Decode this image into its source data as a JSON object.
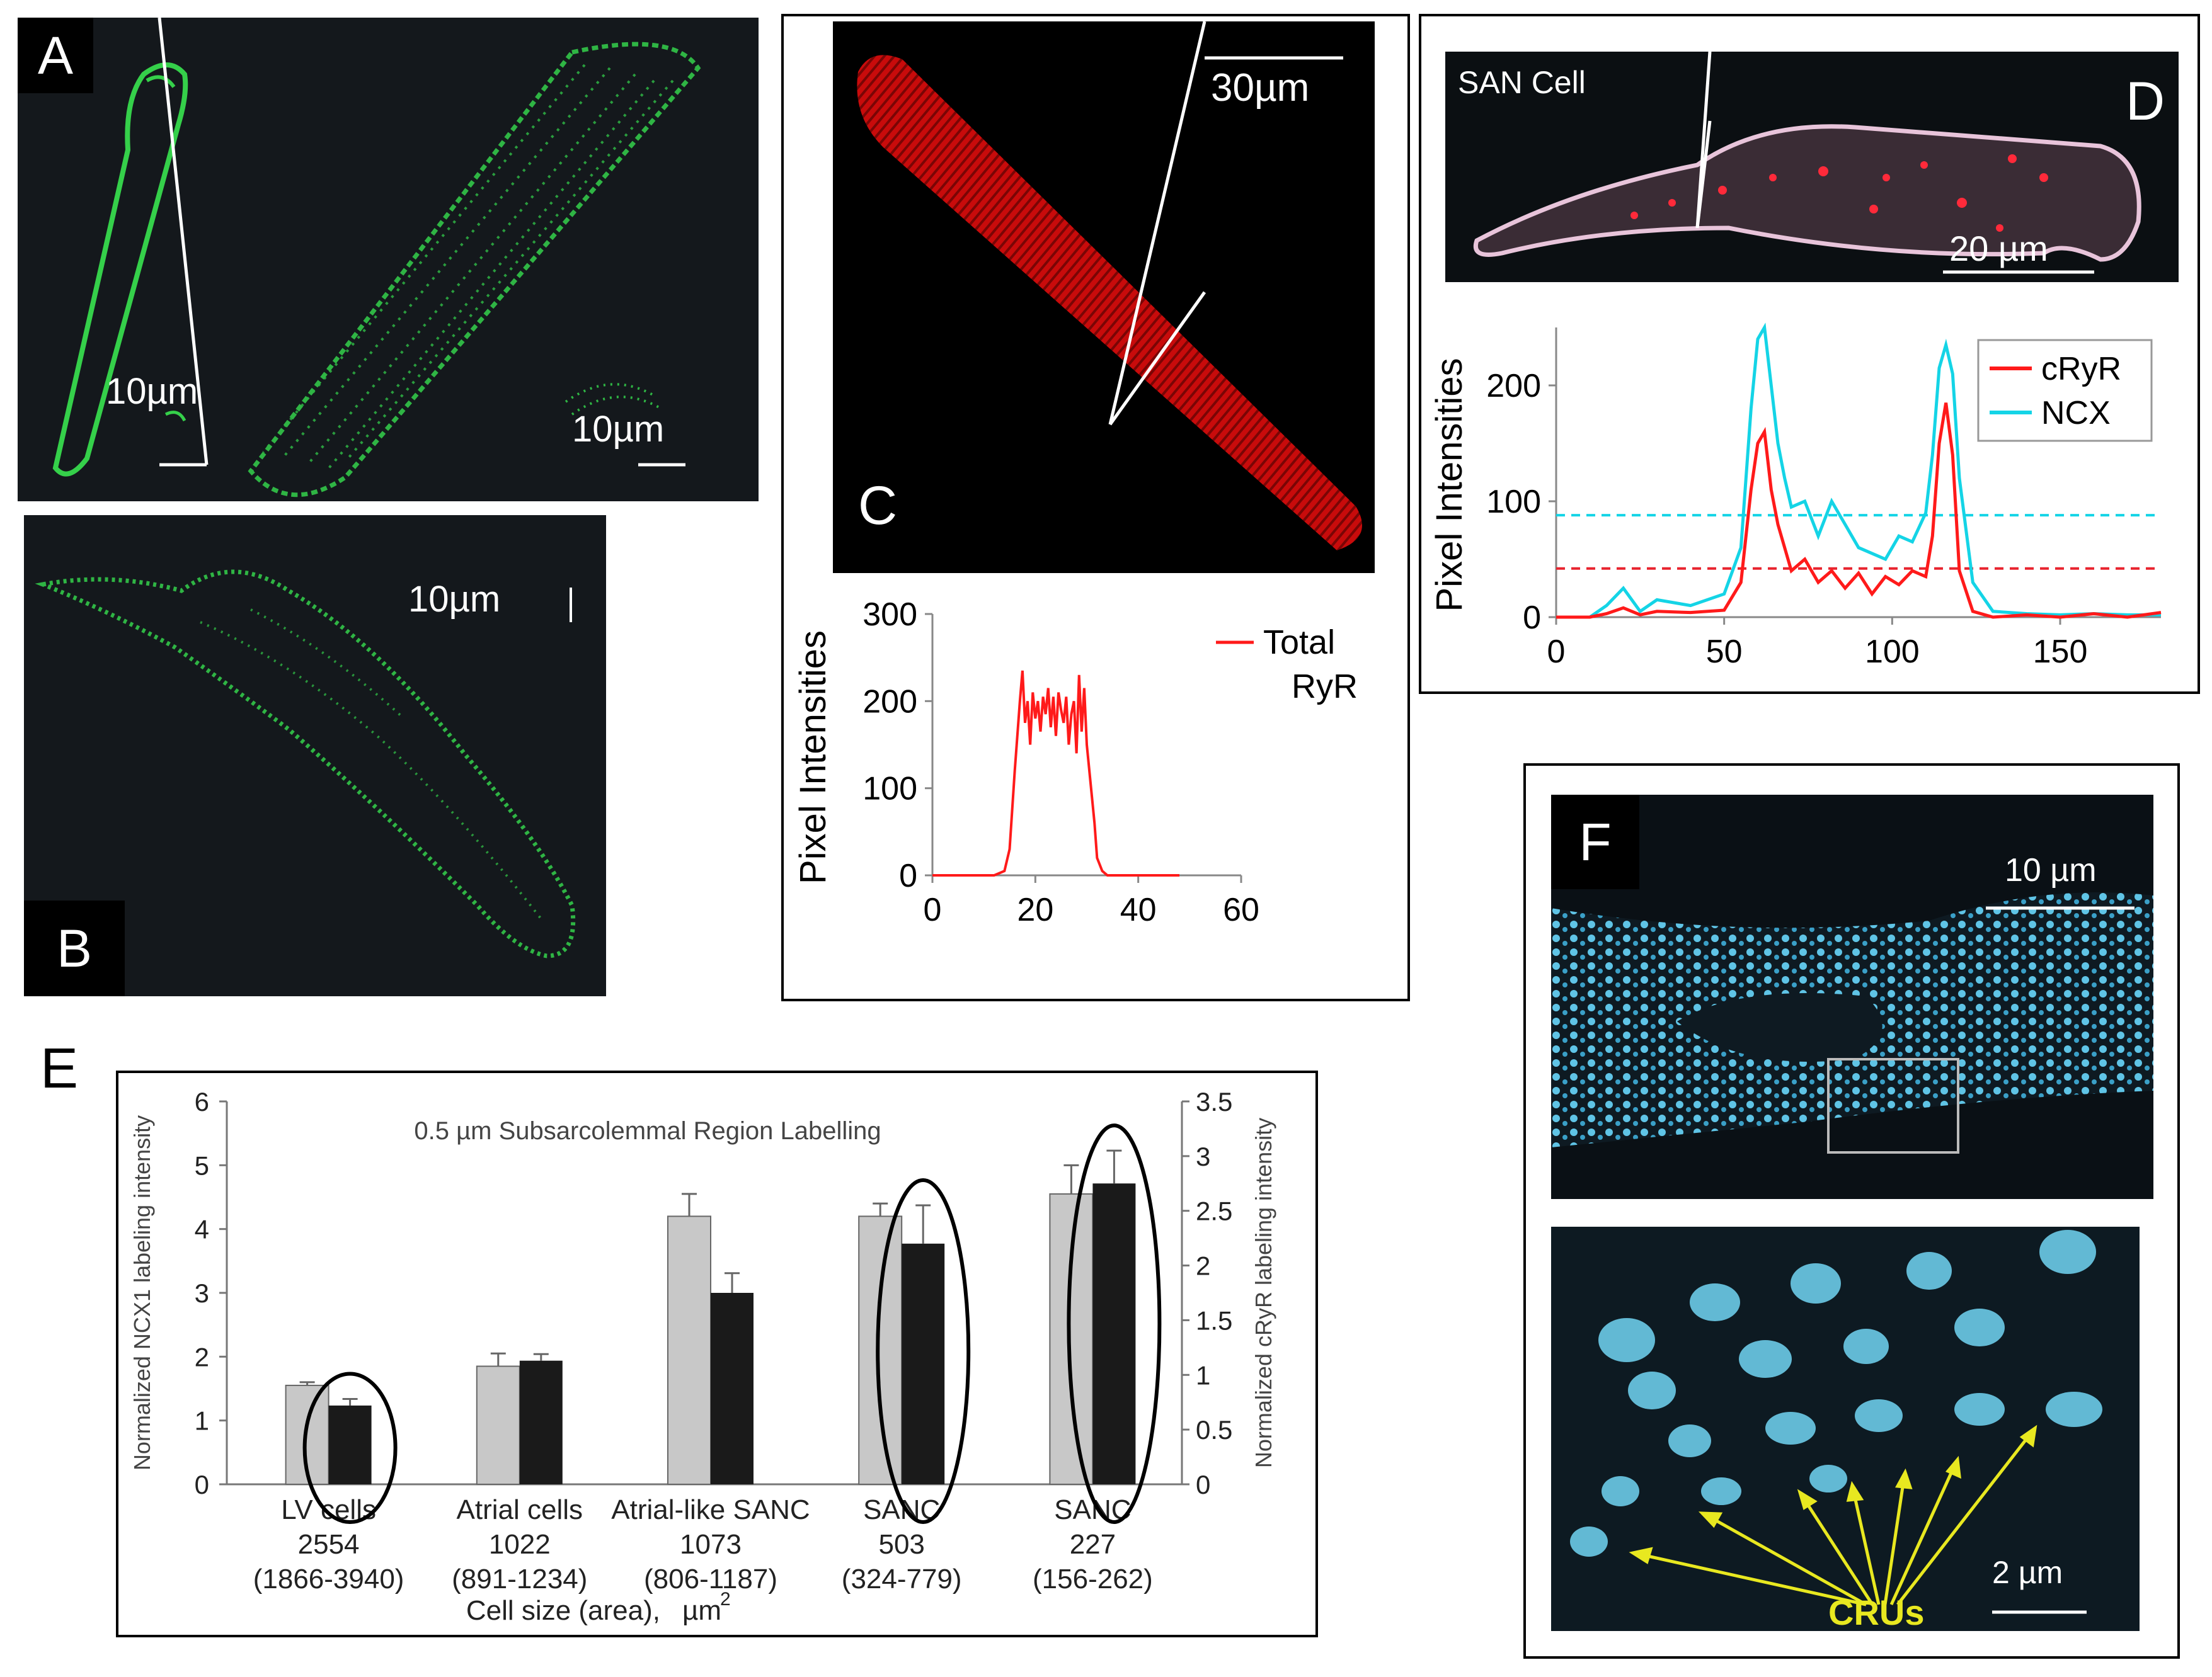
{
  "panels": {
    "A": {
      "label": "A",
      "scale1": "10µm",
      "scale2": "10µm"
    },
    "B": {
      "label": "B",
      "scale": "10µm"
    },
    "C": {
      "label": "C",
      "scale": "30µm",
      "chart_data": {
        "type": "line",
        "ylabel": "Pixel Intensities",
        "xlabel": "",
        "xlim": [
          0,
          60
        ],
        "ylim": [
          0,
          300
        ],
        "xticks": [
          "0",
          "20",
          "40",
          "60"
        ],
        "yticks": [
          "0",
          "100",
          "200",
          "300"
        ],
        "legend": [
          "Total",
          "RyR"
        ],
        "series": [
          {
            "name": "Total RyR",
            "color": "#ff1a1a",
            "x": [
              0,
              2,
              4,
              6,
              8,
              10,
              12,
              14,
              15,
              16,
              17,
              17.5,
              18,
              18.5,
              19,
              19.5,
              20,
              20.5,
              21,
              21.5,
              22,
              22.5,
              23,
              23.5,
              24,
              24.5,
              25,
              25.5,
              26,
              26.5,
              27,
              27.5,
              28,
              28.5,
              29,
              29.5,
              30,
              30.5,
              31,
              31.5,
              32,
              33,
              34,
              36,
              38,
              40,
              44,
              48
            ],
            "y": [
              0,
              0,
              0,
              0,
              0,
              0,
              0,
              5,
              30,
              120,
              200,
              235,
              175,
              200,
              150,
              210,
              180,
              200,
              165,
              205,
              185,
              215,
              170,
              205,
              160,
              210,
              190,
              175,
              205,
              150,
              185,
              200,
              140,
              230,
              165,
              215,
              150,
              120,
              90,
              60,
              20,
              5,
              0,
              0,
              0,
              0,
              0,
              0
            ]
          }
        ]
      }
    },
    "D": {
      "label": "D",
      "image_title": "SAN Cell",
      "scale": "20 µm",
      "chart_data": {
        "type": "line",
        "ylabel": "Pixel Intensities",
        "xlabel": "",
        "xlim": [
          0,
          180
        ],
        "ylim": [
          0,
          250
        ],
        "xticks": [
          "0",
          "50",
          "100",
          "150"
        ],
        "yticks": [
          "0",
          "100",
          "200"
        ],
        "thresholds": [
          {
            "name": "NCX",
            "value": 88,
            "color": "#14d4e6"
          },
          {
            "name": "cRyR",
            "value": 42,
            "color": "#e8232e"
          }
        ],
        "series": [
          {
            "name": "cRyR",
            "color": "#ff1a1a",
            "x": [
              0,
              10,
              15,
              20,
              25,
              30,
              40,
              50,
              55,
              58,
              60,
              62,
              64,
              66,
              68,
              70,
              74,
              78,
              82,
              86,
              90,
              94,
              98,
              102,
              106,
              110,
              112,
              114,
              116,
              118,
              120,
              124,
              130,
              140,
              150,
              160,
              170,
              180
            ],
            "y": [
              0,
              0,
              3,
              8,
              2,
              5,
              4,
              6,
              30,
              110,
              150,
              160,
              110,
              80,
              60,
              40,
              50,
              30,
              40,
              25,
              38,
              20,
              35,
              28,
              40,
              35,
              70,
              150,
              185,
              140,
              40,
              5,
              0,
              2,
              0,
              3,
              0,
              4
            ]
          },
          {
            "name": "NCX",
            "color": "#14d4e6",
            "x": [
              0,
              10,
              15,
              20,
              25,
              30,
              40,
              50,
              55,
              58,
              60,
              62,
              64,
              66,
              68,
              70,
              74,
              78,
              82,
              86,
              90,
              94,
              98,
              102,
              106,
              110,
              112,
              114,
              116,
              118,
              120,
              124,
              130,
              140,
              150,
              160,
              170,
              180
            ],
            "y": [
              0,
              0,
              10,
              25,
              5,
              15,
              10,
              20,
              60,
              180,
              240,
              250,
              200,
              150,
              120,
              95,
              100,
              70,
              100,
              80,
              60,
              55,
              50,
              70,
              65,
              90,
              140,
              215,
              235,
              210,
              120,
              30,
              5,
              3,
              2,
              3,
              2,
              2
            ]
          }
        ]
      }
    },
    "E": {
      "label": "E",
      "chart_data": {
        "type": "bar",
        "title": "0.5  µm Subsarcolemmal Region Labelling",
        "ylabel_left": "Normalized NCX1  labeling intensity",
        "ylabel_right": "Normalized cRyR labeling intensity",
        "xlabel": "Cell size (area),",
        "xlabel_unit": "µm",
        "xlabel_sup": "2",
        "ylim_left": [
          0,
          6
        ],
        "ylim_right": [
          0,
          3.5
        ],
        "yticks_left": [
          "0",
          "1",
          "2",
          "3",
          "4",
          "5",
          "6"
        ],
        "yticks_right": [
          "0",
          "0.5",
          "1",
          "1.5",
          "2",
          "2.5",
          "3",
          "3.5"
        ],
        "categories": [
          {
            "name": "LV cells",
            "size": "2554",
            "range": "(1866-3940)"
          },
          {
            "name": "Atrial cells",
            "size": "1022",
            "range": "(891-1234)"
          },
          {
            "name": "Atrial-like SANC",
            "size": "1073",
            "range": "(806-1187)"
          },
          {
            "name": "SANC",
            "size": "503",
            "range": "(324-779)"
          },
          {
            "name": "SANC",
            "size": "227",
            "range": "(156-262)"
          }
        ],
        "series": [
          {
            "name": "NCX1",
            "axis": "left",
            "color": "#c8c8c8",
            "values": [
              1.55,
              1.85,
              4.2,
              4.2,
              4.55
            ],
            "errors": [
              0.05,
              0.2,
              0.35,
              0.2,
              0.45
            ]
          },
          {
            "name": "cRyR",
            "axis": "right",
            "color": "#1a1a1a",
            "values": [
              0.72,
              1.13,
              1.75,
              2.2,
              2.75
            ],
            "errors": [
              0.06,
              0.06,
              0.18,
              0.35,
              0.3
            ]
          }
        ],
        "circled_categories": [
          0,
          3,
          4
        ]
      }
    },
    "F": {
      "label": "F",
      "scale_top": "10 µm",
      "scale_bottom": "2 µm",
      "arrow_label": "CRUs"
    }
  }
}
